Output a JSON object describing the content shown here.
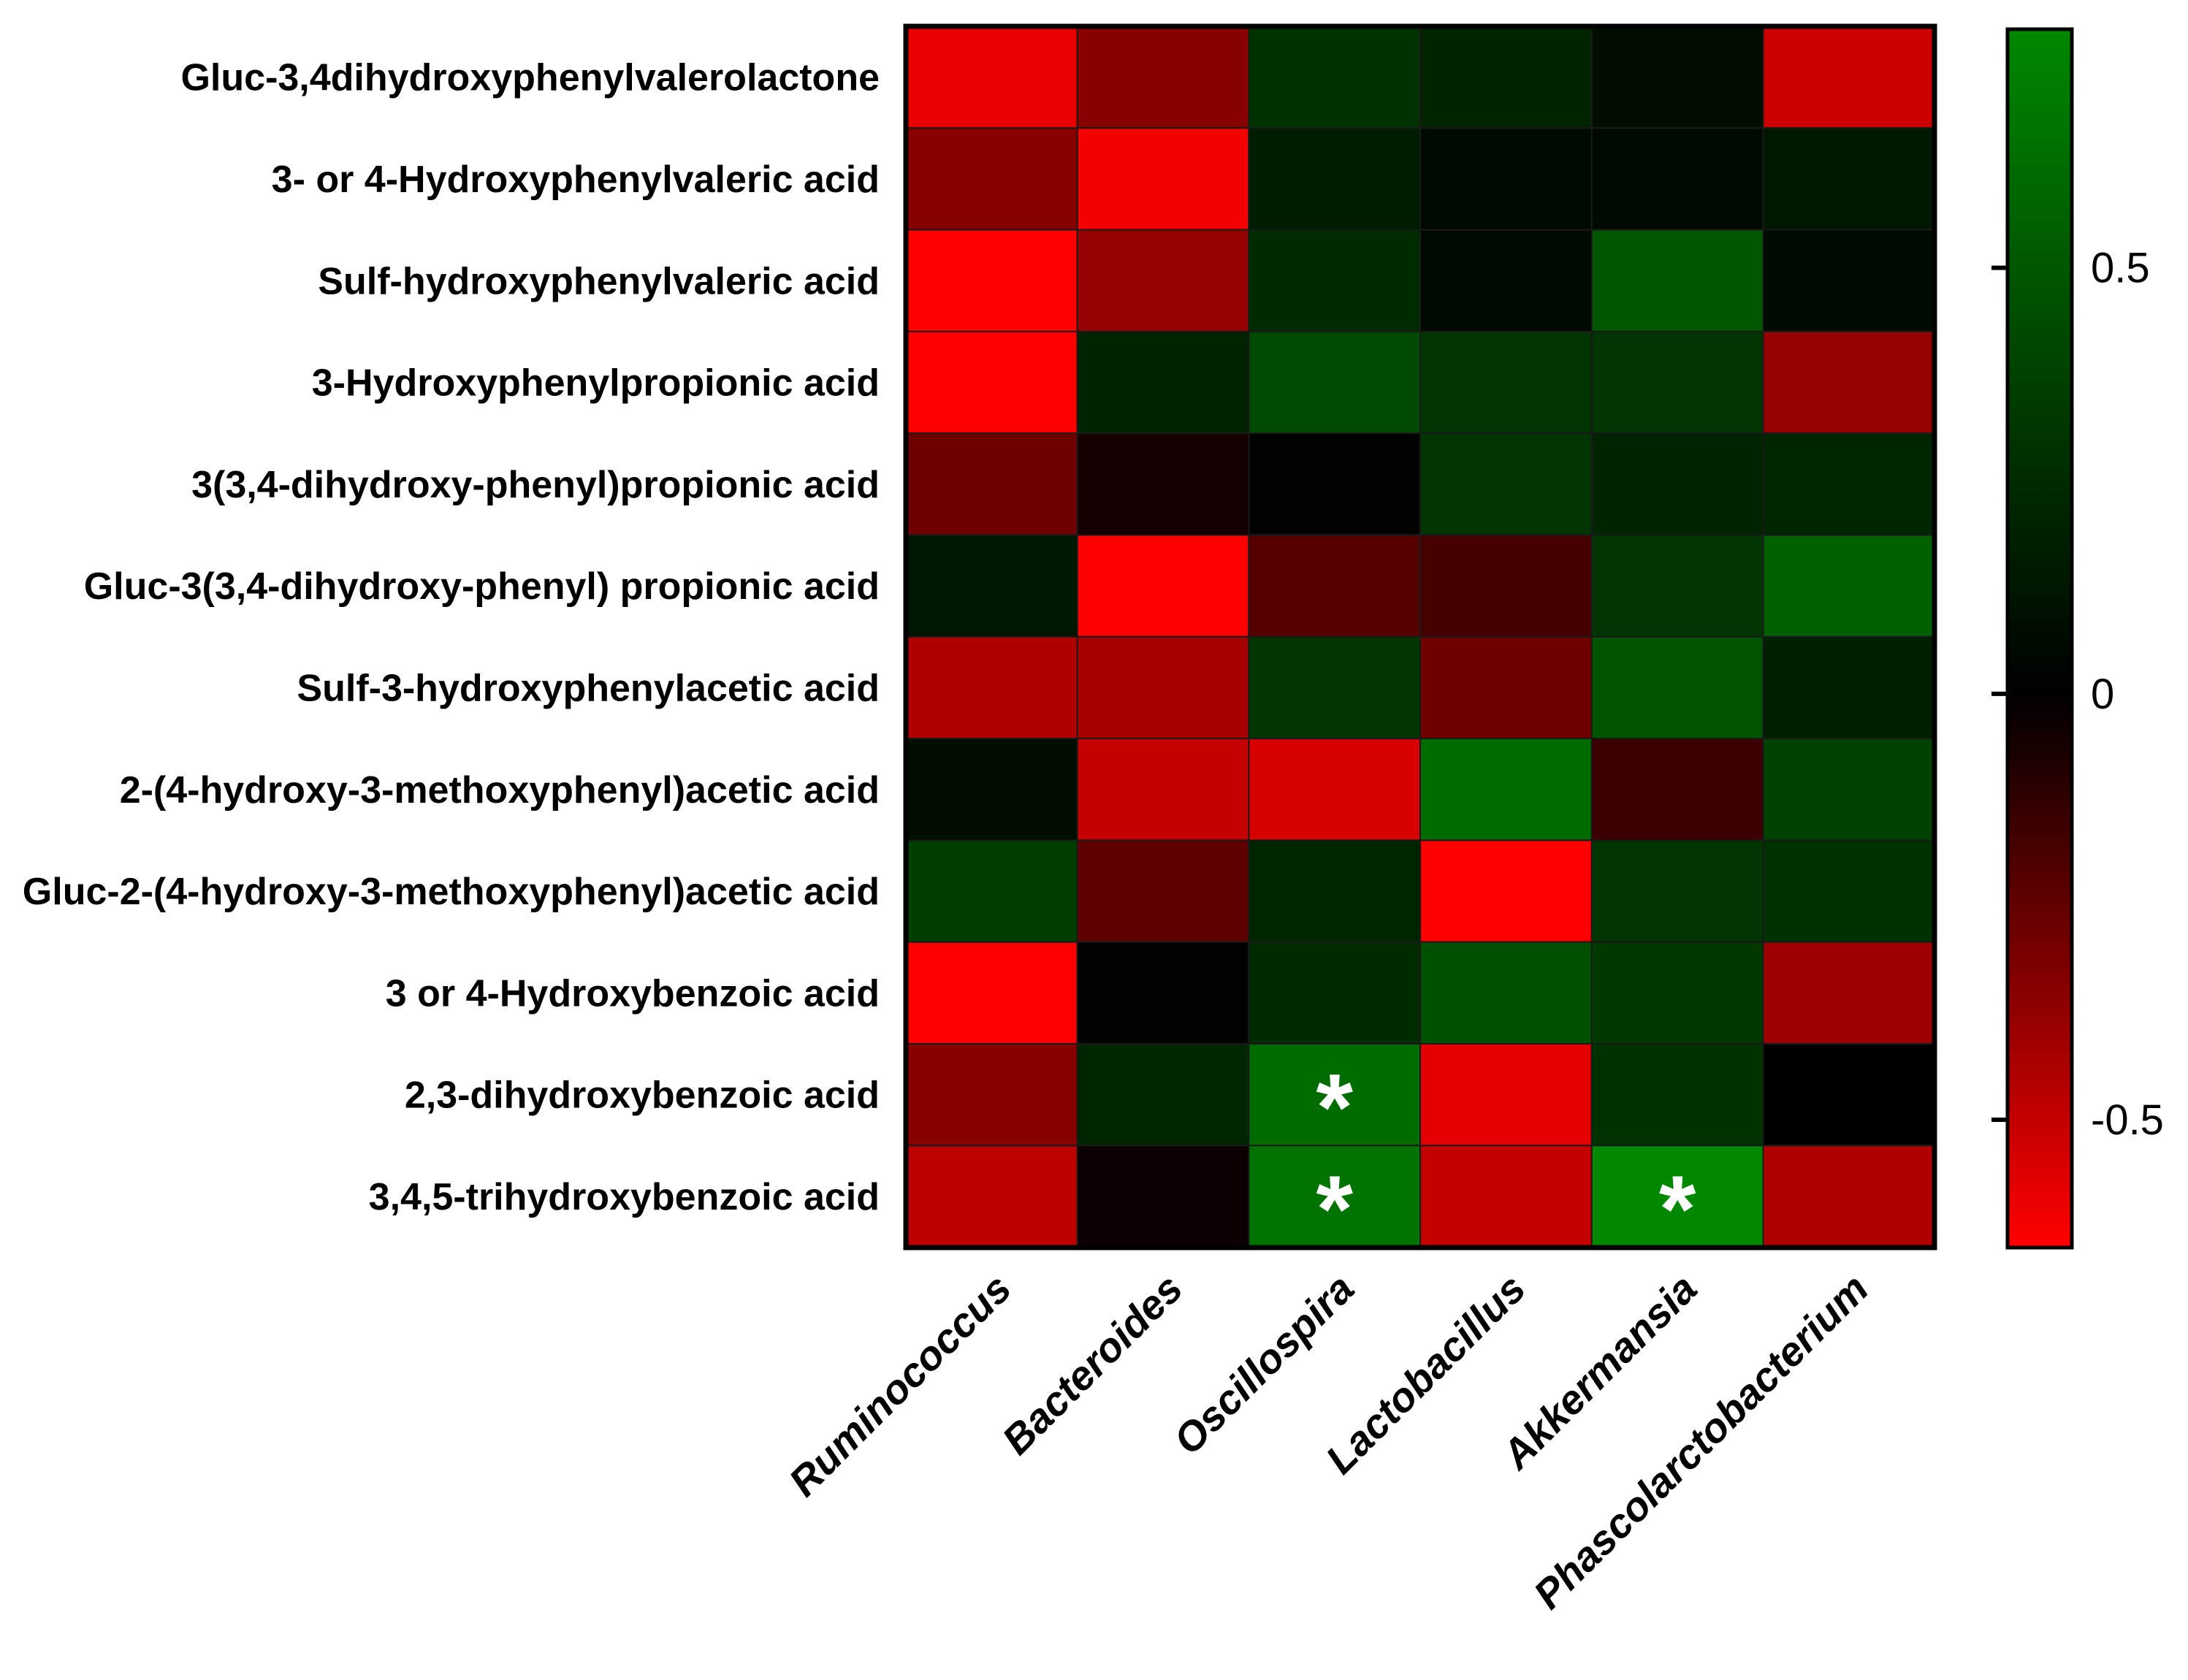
{
  "chart_data": {
    "type": "heatmap",
    "rows": [
      "Gluc-3,4dihydroxyphenylvalerolactone",
      "3- or 4-Hydroxyphenylvaleric acid",
      "Sulf-hydroxyphenylvaleric acid",
      "3-Hydroxyphenylpropionic acid",
      "3(3,4-dihydroxy-phenyl)propionic acid",
      "Gluc-3(3,4-dihydroxy-phenyl) propionic acid",
      "Sulf-3-hydroxyphenylacetic acid",
      "2-(4-hydroxy-3-methoxyphenyl)acetic acid",
      "Gluc-2-(4-hydroxy-3-methoxyphenyl)acetic acid",
      "3 or 4-Hydroxybenzoic acid",
      "2,3-dihydroxybenzoic acid",
      "3,4,5-trihydroxybenzoic acid"
    ],
    "columns": [
      "Ruminococcus",
      "Bacteroides",
      "Oscillospira",
      "Lactobacillus",
      "Akkermansia",
      "Phascolarctobacterium"
    ],
    "values": [
      [
        -0.6,
        -0.35,
        0.28,
        0.2,
        0.08,
        -0.52
      ],
      [
        -0.35,
        -0.62,
        0.16,
        0.05,
        0.05,
        0.14
      ],
      [
        -0.65,
        -0.38,
        0.24,
        0.05,
        0.5,
        0.06
      ],
      [
        -0.65,
        0.2,
        0.42,
        0.3,
        0.3,
        -0.38
      ],
      [
        -0.28,
        -0.05,
        0.02,
        0.3,
        0.2,
        0.22
      ],
      [
        0.12,
        -0.65,
        -0.22,
        -0.18,
        0.3,
        0.55
      ],
      [
        -0.45,
        -0.42,
        0.3,
        -0.28,
        0.48,
        0.18
      ],
      [
        0.08,
        -0.5,
        -0.55,
        0.62,
        -0.15,
        0.38
      ],
      [
        0.35,
        -0.24,
        0.22,
        -0.65,
        0.3,
        0.28
      ],
      [
        -0.65,
        0.02,
        0.24,
        0.46,
        0.32,
        -0.4
      ],
      [
        -0.35,
        0.22,
        0.62,
        -0.58,
        0.28,
        0.0
      ],
      [
        -0.48,
        -0.03,
        0.66,
        -0.5,
        0.78,
        -0.45
      ]
    ],
    "significant": [
      [
        10,
        2
      ],
      [
        11,
        2
      ],
      [
        11,
        4
      ]
    ],
    "significance_marker": "*",
    "colorbar": {
      "min": -0.65,
      "max": 0.78,
      "ticks": [
        0.5,
        0,
        -0.5
      ],
      "tick_labels": [
        "0.5",
        "0",
        "-0.5"
      ]
    },
    "colors": {
      "negative": "#ff0000",
      "zero": "#000000",
      "positive": "#008800"
    }
  }
}
